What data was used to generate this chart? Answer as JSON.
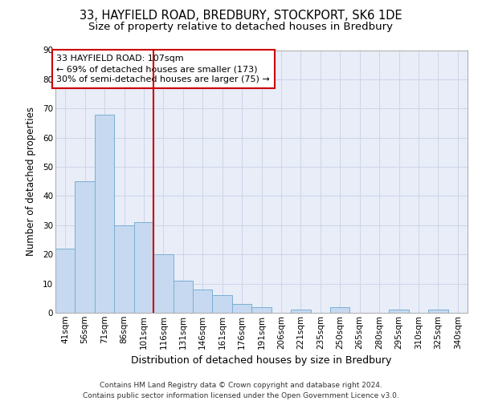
{
  "title1": "33, HAYFIELD ROAD, BREDBURY, STOCKPORT, SK6 1DE",
  "title2": "Size of property relative to detached houses in Bredbury",
  "xlabel": "Distribution of detached houses by size in Bredbury",
  "ylabel": "Number of detached properties",
  "bin_labels": [
    "41sqm",
    "56sqm",
    "71sqm",
    "86sqm",
    "101sqm",
    "116sqm",
    "131sqm",
    "146sqm",
    "161sqm",
    "176sqm",
    "191sqm",
    "206sqm",
    "221sqm",
    "235sqm",
    "250sqm",
    "265sqm",
    "280sqm",
    "295sqm",
    "310sqm",
    "325sqm",
    "340sqm"
  ],
  "bar_heights": [
    22,
    45,
    68,
    30,
    31,
    20,
    11,
    8,
    6,
    3,
    2,
    0,
    1,
    0,
    2,
    0,
    0,
    1,
    0,
    1,
    0
  ],
  "bar_color": "#c6d9f0",
  "bar_edge_color": "#7bafd4",
  "vline_x": 4.5,
  "vline_color": "#cc0000",
  "annotation_text": "33 HAYFIELD ROAD: 107sqm\n← 69% of detached houses are smaller (173)\n30% of semi-detached houses are larger (75) →",
  "annotation_box_color": "#cc0000",
  "ylim": [
    0,
    90
  ],
  "yticks": [
    0,
    10,
    20,
    30,
    40,
    50,
    60,
    70,
    80,
    90
  ],
  "grid_color": "#cdd5e8",
  "bg_color": "#e8edf8",
  "footer": "Contains HM Land Registry data © Crown copyright and database right 2024.\nContains public sector information licensed under the Open Government Licence v3.0.",
  "title1_fontsize": 10.5,
  "title2_fontsize": 9.5,
  "xlabel_fontsize": 9,
  "ylabel_fontsize": 8.5,
  "ann_fontsize": 8.0,
  "tick_fontsize": 7.5
}
